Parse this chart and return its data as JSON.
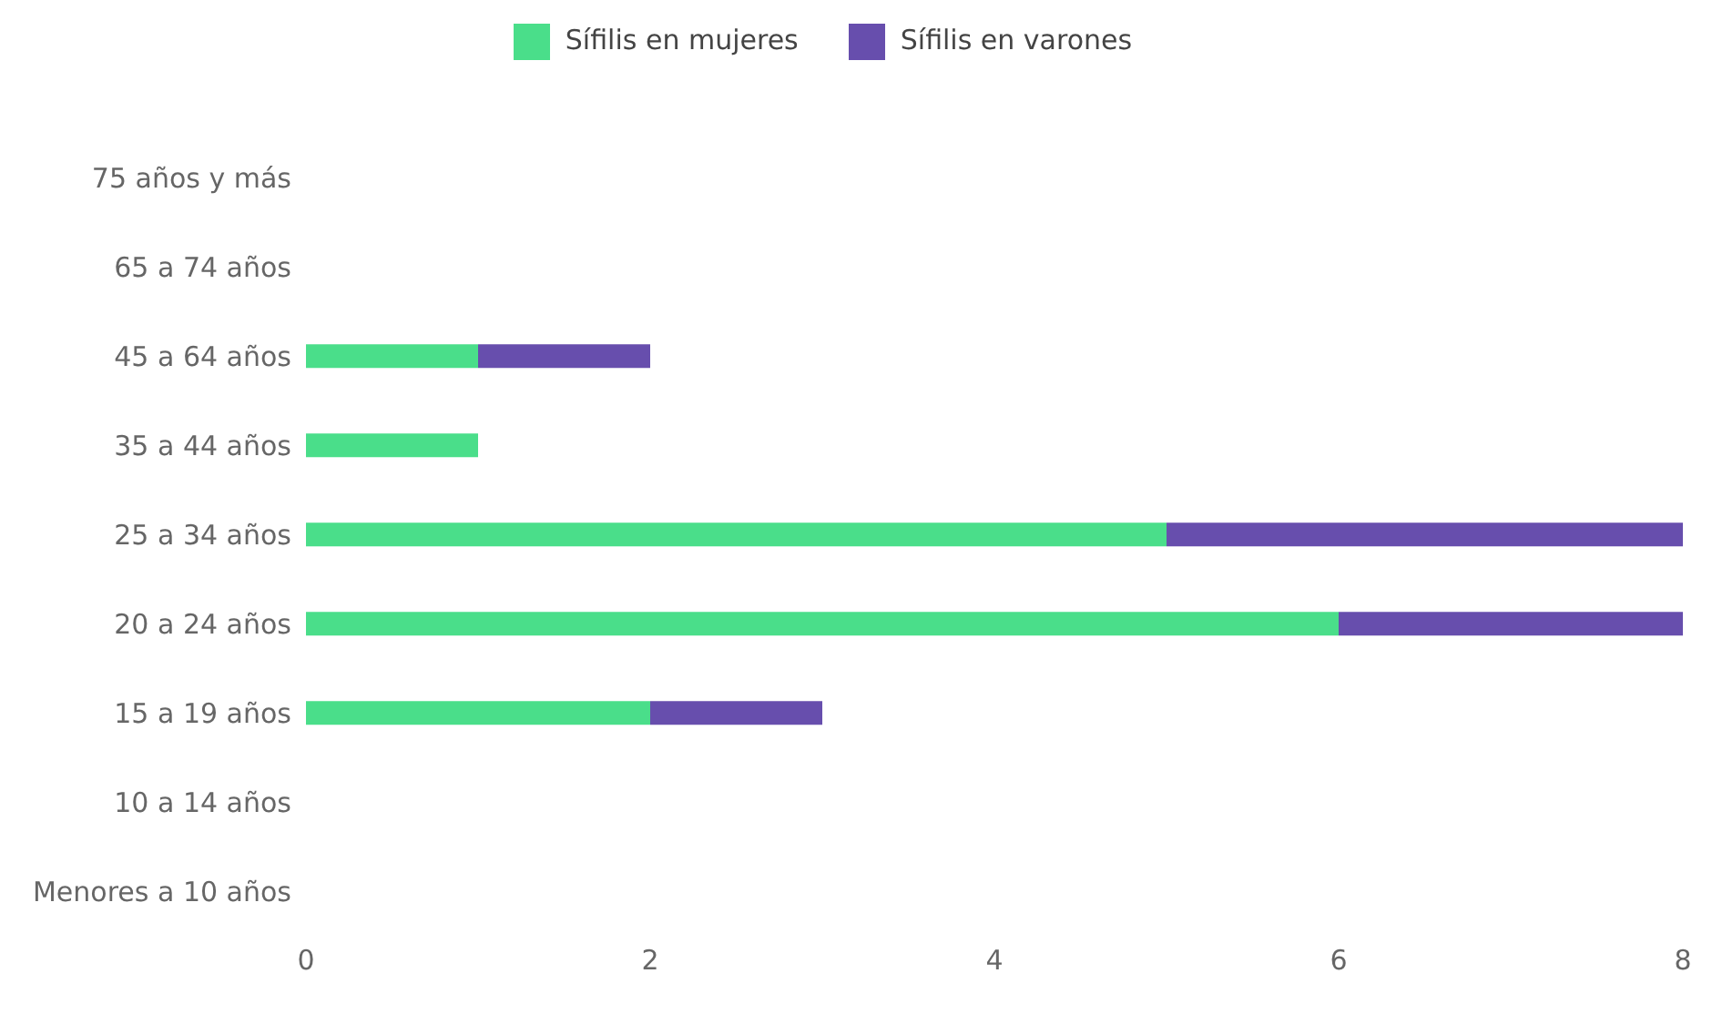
{
  "chart_data": {
    "type": "bar",
    "orientation": "horizontal",
    "stacked": true,
    "categories": [
      "75 años y más",
      "65 a 74 años",
      "45 a 64 años",
      "35 a 44 años",
      "25 a 34 años",
      "20 a 24 años",
      "15 a 19 años",
      "10 a 14 años",
      "Menores a 10 años"
    ],
    "series": [
      {
        "name": "Sífilis en mujeres",
        "color": "#4ade8a",
        "values": [
          0,
          0,
          1,
          1,
          5,
          6,
          2,
          0,
          0
        ]
      },
      {
        "name": "Sífilis en varones",
        "color": "#674ead",
        "values": [
          0,
          0,
          1,
          0,
          3,
          2,
          1,
          0,
          0
        ]
      }
    ],
    "xlim": [
      0,
      8
    ],
    "xticks": [
      0,
      2,
      4,
      6,
      8
    ],
    "grid": false,
    "legend": "top"
  }
}
